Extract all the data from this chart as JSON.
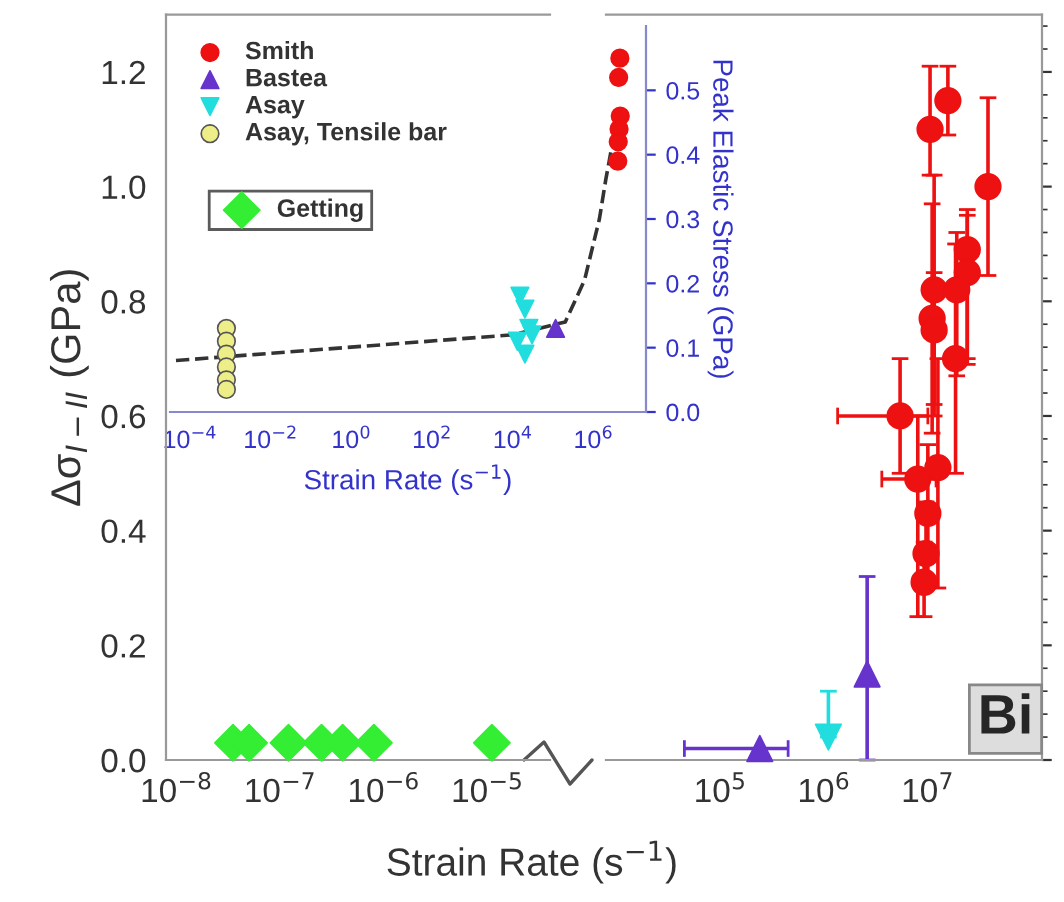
{
  "chart_data": [
    {
      "type": "scatter",
      "ylabel": "Δσ$_{I−II}$ (GPa)",
      "log": "x",
      "xlim": [
        7.9e-09,
        4e-05
      ],
      "xticks": [
        {
          "value": 1e-08,
          "label": "10$^{−8}$"
        },
        {
          "value": 1e-07,
          "label": "10$^{−7}$"
        },
        {
          "value": 1e-06,
          "label": "10$^{−6}$"
        },
        {
          "value": 1e-05,
          "label": "10$^{−5}$"
        }
      ],
      "ylim": [
        0,
        1.3
      ],
      "yticks": [
        {
          "value": 0,
          "label": "0.0"
        },
        0.2,
        0.4,
        0.6,
        0.8,
        {
          "value": 1,
          "label": "1.0"
        },
        1.2
      ],
      "legend": "top left",
      "grid": false,
      "series": [
        {
          "name": "Getting",
          "color": "#33ee33",
          "marker": "diamond",
          "x": [
            3.5e-08,
            5e-08,
            1.2e-07,
            2.5e-07,
            4e-07,
            8e-07,
            1.1e-05
          ],
          "values": [
            0.03,
            0.03,
            0.03,
            0.03,
            0.03,
            0.03,
            0.03
          ]
        }
      ]
    },
    {
      "type": "scatter",
      "xlabel": "Strain Rate (s$^{−1}$)",
      "log": "x",
      "xlim": [
        7900.0,
        126000000.0
      ],
      "xticks": [
        {
          "value": 100000.0,
          "label": "10$^{5}$"
        },
        {
          "value": 1000000.0,
          "label": "10$^{6}$"
        },
        {
          "value": 10000000.0,
          "label": "10$^{7}$"
        }
      ],
      "ylim": [
        0,
        1.3
      ],
      "yticks": [
        {
          "value": 0,
          "label": null
        },
        {
          "value": 0.2,
          "label": null
        },
        {
          "value": 0.4,
          "label": null
        },
        {
          "value": 0.6,
          "label": null
        },
        {
          "value": 0.8,
          "label": null
        },
        {
          "value": 1,
          "label": null
        },
        {
          "value": 1.2,
          "label": null
        }
      ],
      "tick_labels": "x",
      "grid": false,
      "annotations": [
        "Bi"
      ],
      "series": [
        {
          "color": "#ee1111",
          "marker": "circle",
          "x": [
            10500000.0,
            15600000.0,
            38000000.0,
            24000000.0,
            24000000.0,
            11500000.0,
            19000000.0,
            11000000.0,
            11500000.0,
            18500000.0,
            5400000.0,
            8000000.0,
            12500000.0,
            10000000.0,
            9600000.0,
            9200000.0
          ],
          "values": [
            1.1,
            1.15,
            1.0,
            0.89,
            0.85,
            0.82,
            0.82,
            0.77,
            0.75,
            0.7,
            0.6,
            0.49,
            0.51,
            0.43,
            0.36,
            0.31
          ],
          "errors": [
            [
              1.02,
              1.21
            ],
            [
              1.09,
              1.21
            ],
            [
              0.845,
              1.155
            ],
            [
              0.69,
              0.96
            ],
            [
              0.7,
              0.95
            ],
            [
              0.62,
              1.02
            ],
            [
              0.67,
              0.92
            ],
            [
              0.57,
              0.97
            ],
            [
              0.6,
              0.85
            ],
            [
              0.5,
              0.9
            ],
            [
              0.5,
              0.7
            ],
            [
              0.25,
              0.6
            ],
            [
              0.3,
              0.7
            ],
            [
              0.3,
              0.55
            ],
            [
              0.3,
              0.45
            ],
            [
              0.25,
              0.38
            ]
          ],
          "xerrors": [
            null,
            null,
            null,
            null,
            null,
            null,
            null,
            null,
            null,
            null,
            [
              1350000.0,
              10000000.0
            ],
            [
              3600000.0,
              12000000.0
            ],
            null,
            null,
            null,
            null
          ]
        },
        {
          "color": "#6633cc",
          "marker": "triangle",
          "x": [
            240000.0,
            2600000.0
          ],
          "values": [
            0.02,
            0.15
          ],
          "errors": [
            null,
            [
              0.0,
              0.32
            ]
          ],
          "xerrors": [
            [
              45000.0,
              450000.0
            ],
            null
          ]
        },
        {
          "color": "#22dddd",
          "marker": "triangle_down",
          "x": [
            1100000.0
          ],
          "values": [
            0.04
          ],
          "errors": [
            [
              0.04,
              0.12
            ]
          ]
        }
      ]
    },
    {
      "type": "scatter",
      "xlabel": "Strain Rate (s$^{−1}$)",
      "y2label": "Peak Elastic Stress (GPa)",
      "log": "x",
      "xlim": [
        3.2e-05,
        20000000.0
      ],
      "xticks": [
        {
          "value": 0.0001,
          "label": "10$^{−4}$"
        },
        {
          "value": 0.01,
          "label": "10$^{−2}$"
        },
        {
          "value": 1,
          "label": "10$^{0}$"
        },
        {
          "value": 100,
          "label": "10$^{2}$"
        },
        {
          "value": 10000.0,
          "label": "10$^{4}$"
        },
        {
          "value": 1000000.0,
          "label": "10$^{6}$"
        }
      ],
      "y2lim": [
        0,
        0.6
      ],
      "y2ticks": [
        {
          "value": 0,
          "label": "0.0"
        },
        0.1,
        0.2,
        0.3,
        0.4,
        0.5
      ],
      "legend": "top left",
      "grid": false,
      "series": [
        {
          "type": "line",
          "axis": "y2",
          "color": "#333333",
          "line_style": "dashed",
          "marker": "none",
          "x": [
            4.5e-05,
            10000.0,
            200000.0,
            600000.0,
            1400000.0,
            2000000.0,
            3000000.0
          ],
          "values": [
            0.08,
            0.12,
            0.14,
            0.205,
            0.3,
            0.36,
            0.42
          ]
        },
        {
          "name": "Smith",
          "axis": "y2",
          "color": "#ee1111",
          "marker": "circle",
          "x": [
            4500000.0,
            4200000.0,
            4600000.0,
            4300000.0,
            4100000.0,
            4000000.0
          ],
          "values": [
            0.55,
            0.52,
            0.46,
            0.44,
            0.42,
            0.39
          ]
        },
        {
          "name": "Bastea",
          "axis": "y2",
          "color": "#6633cc",
          "marker": "triangle",
          "x": [
            115000.0
          ],
          "values": [
            0.13
          ]
        },
        {
          "name": "Asay",
          "axis": "y2",
          "color": "#22dddd",
          "marker": "triangle_down",
          "x": [
            15000.0,
            20000.0,
            25000.0,
            13000.0,
            20000.0,
            30000.0
          ],
          "values": [
            0.18,
            0.16,
            0.13,
            0.11,
            0.09,
            0.12
          ]
        },
        {
          "name": "Asay, Tensile bar",
          "axis": "y2",
          "color": "#eeee88",
          "marker": "circle",
          "x": [
            0.0008,
            0.0008,
            0.0008,
            0.0008,
            0.0008,
            0.0008
          ],
          "values": [
            0.13,
            0.11,
            0.09,
            0.07,
            0.05,
            0.035
          ]
        }
      ]
    }
  ]
}
